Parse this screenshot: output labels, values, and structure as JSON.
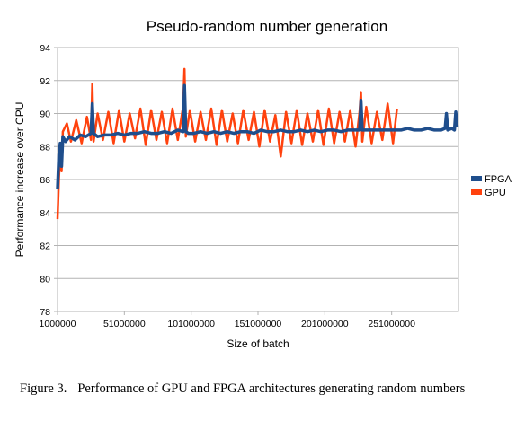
{
  "chart_data": {
    "type": "line",
    "title": "Pseudo-random number generation",
    "xlabel": "Size of batch",
    "ylabel": "Performance increase over CPU",
    "xlim": [
      1000000,
      301000000
    ],
    "ylim": [
      78,
      94
    ],
    "x_ticks": [
      1000000,
      51000000,
      101000000,
      151000000,
      201000000,
      251000000
    ],
    "x_tick_labels": [
      "1000000",
      "51000000",
      "101000000",
      "151000000",
      "201000000",
      "251000000"
    ],
    "y_ticks": [
      78,
      80,
      82,
      84,
      86,
      88,
      90,
      92,
      94
    ],
    "y_tick_labels": [
      "78",
      "80",
      "82",
      "84",
      "86",
      "88",
      "90",
      "92",
      "94"
    ],
    "grid": "horizontal",
    "legend": "right",
    "series": [
      {
        "name": "FPGA",
        "color": "#1f4e8c",
        "x": [
          1000000,
          2000000,
          3000000,
          4000000,
          5000000,
          7000000,
          10000000,
          14000000,
          18000000,
          22000000,
          26000000,
          27000000,
          28000000,
          31000000,
          36000000,
          41000000,
          46000000,
          51000000,
          56000000,
          61000000,
          66000000,
          71000000,
          76000000,
          81000000,
          86000000,
          91000000,
          95000000,
          96000000,
          97000000,
          99000000,
          103000000,
          108000000,
          113000000,
          118000000,
          123000000,
          128000000,
          133000000,
          138000000,
          143000000,
          148000000,
          153000000,
          158000000,
          163000000,
          168000000,
          173000000,
          178000000,
          183000000,
          188000000,
          193000000,
          198000000,
          203000000,
          208000000,
          213000000,
          218000000,
          223000000,
          227000000,
          228000000,
          229000000,
          233000000,
          238000000,
          243000000,
          248000000,
          253000000,
          258000000,
          263000000,
          268000000,
          273000000,
          278000000,
          283000000,
          288000000,
          291000000,
          292000000,
          293000000,
          296000000,
          298000000,
          299000000,
          300000000
        ],
        "values": [
          85.4,
          87.5,
          88.2,
          86.8,
          88.6,
          88.3,
          88.6,
          88.4,
          88.7,
          88.6,
          88.8,
          90.6,
          88.8,
          88.6,
          88.7,
          88.7,
          88.8,
          88.7,
          88.8,
          88.8,
          88.9,
          88.8,
          88.8,
          88.9,
          88.8,
          89.0,
          88.9,
          91.7,
          88.9,
          88.8,
          88.8,
          88.9,
          88.8,
          88.9,
          88.8,
          88.9,
          88.8,
          88.9,
          88.9,
          88.8,
          89.0,
          88.9,
          88.9,
          89.0,
          88.9,
          88.9,
          89.0,
          88.9,
          89.0,
          88.9,
          89.0,
          89.0,
          88.9,
          89.0,
          89.0,
          89.0,
          90.8,
          89.0,
          89.0,
          89.0,
          89.0,
          89.0,
          89.0,
          89.0,
          89.1,
          89.0,
          89.0,
          89.1,
          89.0,
          89.0,
          89.1,
          90.0,
          89.0,
          89.1,
          89.0,
          90.1,
          89.2
        ]
      },
      {
        "name": "GPU",
        "color": "#ff420e",
        "x": [
          1000000,
          2000000,
          3000000,
          4000000,
          5000000,
          8000000,
          11000000,
          15000000,
          19000000,
          23000000,
          26000000,
          27000000,
          28000000,
          31000000,
          35000000,
          39000000,
          43000000,
          47000000,
          51000000,
          55000000,
          59000000,
          63000000,
          67000000,
          71000000,
          75000000,
          79000000,
          83000000,
          87000000,
          91000000,
          95000000,
          96000000,
          97000000,
          100000000,
          104000000,
          108000000,
          112000000,
          116000000,
          120000000,
          124000000,
          128000000,
          132000000,
          136000000,
          140000000,
          144000000,
          148000000,
          152000000,
          156000000,
          160000000,
          164000000,
          168000000,
          172000000,
          176000000,
          180000000,
          184000000,
          188000000,
          192000000,
          196000000,
          200000000,
          204000000,
          208000000,
          212000000,
          216000000,
          220000000,
          224000000,
          227000000,
          228000000,
          229000000,
          232000000,
          236000000,
          240000000,
          244000000,
          248000000,
          252000000,
          255000000
        ],
        "values": [
          83.6,
          86.0,
          87.8,
          86.5,
          88.9,
          89.4,
          88.3,
          89.6,
          88.2,
          89.8,
          88.4,
          91.8,
          88.3,
          90.0,
          88.4,
          90.1,
          88.2,
          90.2,
          88.3,
          90.0,
          88.5,
          90.3,
          88.1,
          90.2,
          88.4,
          90.1,
          88.2,
          90.3,
          88.4,
          90.4,
          92.7,
          88.6,
          90.2,
          88.3,
          90.1,
          88.4,
          90.3,
          88.1,
          90.2,
          88.3,
          90.0,
          88.2,
          90.2,
          88.4,
          90.1,
          88.0,
          90.2,
          88.3,
          89.9,
          87.4,
          90.1,
          88.2,
          90.2,
          88.1,
          90.0,
          88.3,
          90.2,
          88.1,
          90.3,
          88.2,
          90.1,
          88.3,
          90.2,
          88.0,
          90.1,
          91.3,
          88.3,
          90.4,
          88.2,
          90.1,
          88.4,
          90.6,
          88.2,
          90.3
        ]
      }
    ]
  },
  "caption": {
    "figure_number": "Figure 3.",
    "text": "Performance of GPU and FPGA architectures generating random numbers"
  }
}
